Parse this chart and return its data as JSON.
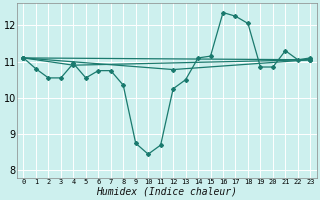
{
  "xlabel": "Humidex (Indice chaleur)",
  "background_color": "#cdf0ee",
  "grid_color": "#ffffff",
  "line_color": "#1a7a6e",
  "xlim": [
    -0.5,
    23.5
  ],
  "ylim": [
    7.8,
    12.6
  ],
  "yticks": [
    8,
    9,
    10,
    11,
    12
  ],
  "xticks": [
    0,
    1,
    2,
    3,
    4,
    5,
    6,
    7,
    8,
    9,
    10,
    11,
    12,
    13,
    14,
    15,
    16,
    17,
    18,
    19,
    20,
    21,
    22,
    23
  ],
  "series1_x": [
    0,
    1,
    2,
    3,
    4,
    5,
    6,
    7,
    8,
    9,
    10,
    11,
    12,
    13,
    14,
    15,
    16,
    17,
    18,
    19,
    20,
    21,
    22,
    23
  ],
  "series1_y": [
    11.1,
    10.8,
    10.55,
    10.55,
    10.95,
    10.55,
    10.75,
    10.75,
    10.35,
    8.75,
    8.45,
    8.7,
    10.25,
    10.5,
    11.1,
    11.15,
    12.35,
    12.25,
    12.05,
    10.85,
    10.85,
    11.3,
    11.05,
    11.1
  ],
  "series2_x": [
    0,
    23
  ],
  "series2_y": [
    11.1,
    11.05
  ],
  "series3_x": [
    0,
    4,
    23
  ],
  "series3_y": [
    11.1,
    10.9,
    11.05
  ],
  "series4_x": [
    0,
    12,
    23
  ],
  "series4_y": [
    11.1,
    10.78,
    11.05
  ],
  "xlabel_fontsize": 7,
  "ytick_fontsize": 7,
  "xtick_fontsize": 5
}
